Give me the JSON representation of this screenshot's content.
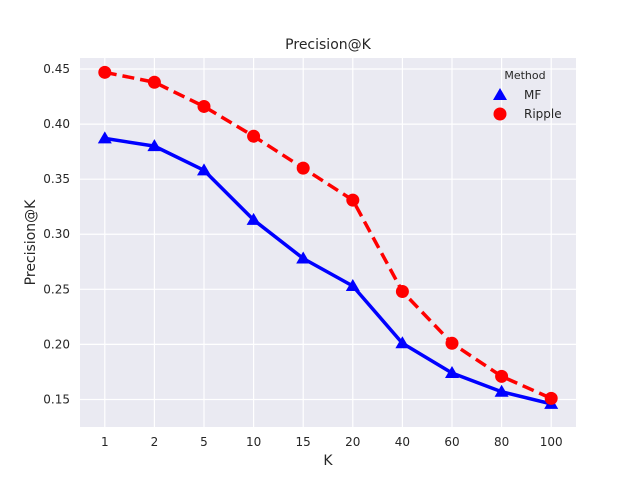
{
  "chart_data": {
    "type": "line",
    "title": "Precision@K",
    "xlabel": "K",
    "ylabel": "Precision@K",
    "categories": [
      "1",
      "2",
      "5",
      "10",
      "15",
      "20",
      "40",
      "60",
      "80",
      "100"
    ],
    "ylim": [
      0.125,
      0.46
    ],
    "yticks": [
      "0.15",
      "0.20",
      "0.25",
      "0.30",
      "0.35",
      "0.40",
      "0.45"
    ],
    "grid": true,
    "legend": {
      "title": "Method",
      "placement": "top-right"
    },
    "series": [
      {
        "name": "MF",
        "color": "#0000ff",
        "marker": "triangle",
        "linestyle": "solid",
        "values": [
          0.387,
          0.38,
          0.358,
          0.313,
          0.278,
          0.253,
          0.201,
          0.174,
          0.157,
          0.146
        ]
      },
      {
        "name": "Ripple",
        "color": "#ff0000",
        "marker": "circle",
        "linestyle": "dashed",
        "values": [
          0.447,
          0.438,
          0.416,
          0.389,
          0.36,
          0.331,
          0.248,
          0.201,
          0.171,
          0.151
        ]
      }
    ]
  }
}
